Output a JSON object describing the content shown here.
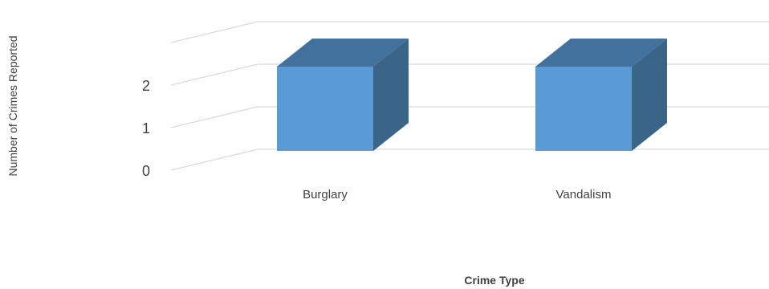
{
  "chart_data": {
    "type": "bar",
    "style": "3d-column",
    "categories": [
      "Burglary",
      "Vandalism"
    ],
    "values": [
      2,
      2
    ],
    "xlabel": "Crime Type",
    "ylabel": "Number of Crimes Reported",
    "yticks": [
      "0",
      "1",
      "2"
    ],
    "ylim": [
      0,
      2
    ],
    "grid": true,
    "legend": "none",
    "colors": {
      "front": "#5B9BD5",
      "top": "#41719C",
      "side": "#3A6589",
      "grid": "#D9D9D9"
    }
  }
}
